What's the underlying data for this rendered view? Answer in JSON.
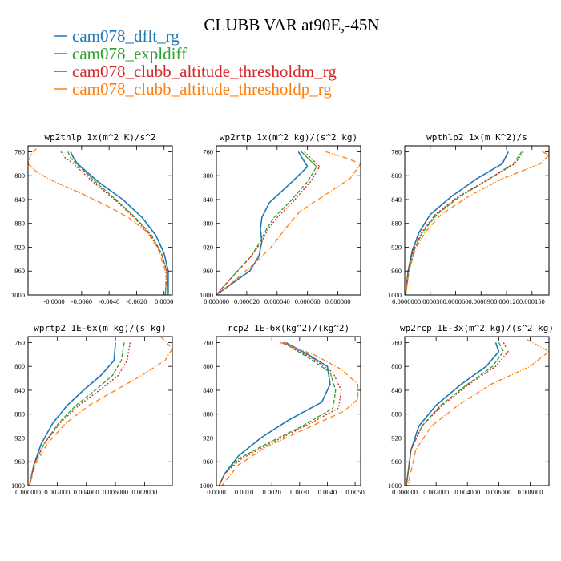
{
  "figure": {
    "title": "CLUBB VAR at90E,-45N"
  },
  "legend": [
    {
      "name": "cam078_dflt_rg",
      "color": "#1f77b4"
    },
    {
      "name": "cam078_expldiff",
      "color": "#2ca02c"
    },
    {
      "name": "cam078_clubb_altitude_thresholdm_rg",
      "color": "#d62728"
    },
    {
      "name": "cam078_clubb_altitude_thresholdp_rg",
      "color": "#ff7f0e"
    }
  ],
  "chart_data": [
    {
      "type": "line",
      "title": "wp2thlp  1x(m^2 K)/s^2",
      "ylim": [
        1000,
        750
      ],
      "xlim": [
        -0.0099,
        0.0006
      ],
      "yticks": [
        760,
        800,
        840,
        880,
        920,
        960,
        1000
      ],
      "xticks": [
        {
          "v": -0.008,
          "label": "-0.0080"
        },
        {
          "v": -0.006,
          "label": "-0.0060"
        },
        {
          "v": -0.004,
          "label": "-0.0040"
        },
        {
          "v": -0.002,
          "label": "-0.0020"
        },
        {
          "v": 0.0,
          "label": "0.0000"
        }
      ],
      "series": [
        {
          "name": "cam078_dflt_rg",
          "x": [
            -0.0068,
            -0.0066,
            -0.0063,
            -0.0048,
            -0.003,
            -0.0016,
            -0.0006,
            0.0,
            0.0003,
            0.0003
          ],
          "y": [
            760,
            770,
            780,
            810,
            840,
            870,
            900,
            930,
            960,
            1000
          ]
        },
        {
          "name": "cam078_expldiff",
          "x": [
            -0.007,
            -0.0068,
            -0.0064,
            -0.005,
            -0.0035,
            -0.0021,
            -0.0009,
            -0.0002,
            0.0002,
            0.0001
          ],
          "y": [
            760,
            770,
            780,
            810,
            840,
            870,
            900,
            930,
            960,
            1000
          ]
        },
        {
          "name": "cam078_clubb_altitude_thresholdm_rg",
          "x": [
            -0.0075,
            -0.0072,
            -0.0066,
            -0.0052,
            -0.0036,
            -0.0022,
            -0.001,
            -0.0002,
            0.0002,
            0.0001
          ],
          "y": [
            760,
            770,
            780,
            810,
            840,
            870,
            900,
            930,
            960,
            1000
          ]
        },
        {
          "name": "cam078_clubb_altitude_thresholdp_rg",
          "x": [
            -0.0093,
            -0.0097,
            -0.0099,
            -0.0092,
            -0.008,
            -0.006,
            -0.0042,
            -0.0026,
            -0.0012,
            -0.0004,
            0.0001,
            0.0003
          ],
          "y": [
            755,
            765,
            780,
            795,
            810,
            830,
            850,
            870,
            895,
            925,
            960,
            1000
          ]
        }
      ]
    },
    {
      "type": "line",
      "title": "wp2rtp  1x(m^2 kg)/(s^2 kg)",
      "ylim": [
        1000,
        750
      ],
      "xlim": [
        0.0,
        9.5e-05
      ],
      "yticks": [
        760,
        800,
        840,
        880,
        920,
        960,
        1000
      ],
      "xticks": [
        {
          "v": 0.0,
          "label": "0.000000"
        },
        {
          "v": 2e-05,
          "label": "0.000020"
        },
        {
          "v": 4e-05,
          "label": "0.000040"
        },
        {
          "v": 6e-05,
          "label": "0.000060"
        },
        {
          "v": 8e-05,
          "label": "0.000080"
        }
      ],
      "series": [
        {
          "name": "cam078_dflt_rg",
          "x": [
            5.4e-05,
            6e-05,
            5e-05,
            3.5e-05,
            3e-05,
            2.9e-05,
            3e-05,
            2.8e-05,
            2.2e-05,
            8e-06,
            0.0
          ],
          "y": [
            760,
            785,
            810,
            845,
            870,
            890,
            910,
            935,
            960,
            985,
            1000
          ]
        },
        {
          "name": "cam078_expldiff",
          "x": [
            5.6e-05,
            6.6e-05,
            6e-05,
            4.8e-05,
            3.8e-05,
            3.3e-05,
            2.9e-05,
            2.3e-05,
            1.4e-05,
            5e-06,
            0.0
          ],
          "y": [
            760,
            785,
            810,
            845,
            870,
            890,
            910,
            935,
            960,
            985,
            1000
          ]
        },
        {
          "name": "cam078_clubb_altitude_thresholdm_rg",
          "x": [
            5.8e-05,
            6.8e-05,
            6.2e-05,
            5e-05,
            4e-05,
            3.4e-05,
            3e-05,
            2.3e-05,
            1.4e-05,
            5e-06,
            0.0
          ],
          "y": [
            760,
            785,
            810,
            845,
            870,
            890,
            910,
            935,
            960,
            985,
            1000
          ]
        },
        {
          "name": "cam078_clubb_altitude_thresholdp_rg",
          "x": [
            7.2e-05,
            8.5e-05,
            9.5e-05,
            8.8e-05,
            7e-05,
            5.5e-05,
            4.5e-05,
            3.6e-05,
            2.4e-05,
            1e-05,
            0.0
          ],
          "y": [
            760,
            770,
            780,
            805,
            835,
            860,
            890,
            920,
            950,
            980,
            1000
          ]
        }
      ]
    },
    {
      "type": "line",
      "title": "wpthlp2  1x(m K^2)/s",
      "ylim": [
        1000,
        750
      ],
      "xlim": [
        0.0,
        0.00017
      ],
      "yticks": [
        760,
        800,
        840,
        880,
        920,
        960,
        1000
      ],
      "xticks": [
        {
          "v": 0.0,
          "label": "0.000000"
        },
        {
          "v": 3e-05,
          "label": "0.000030"
        },
        {
          "v": 6e-05,
          "label": "0.000060"
        },
        {
          "v": 9e-05,
          "label": "0.000090"
        },
        {
          "v": 0.00012,
          "label": "0.000120"
        },
        {
          "v": 0.00015,
          "label": "0.000150"
        }
      ],
      "series": [
        {
          "name": "cam078_dflt_rg",
          "x": [
            0.000122,
            0.000115,
            8.5e-05,
            5.5e-05,
            3e-05,
            1.7e-05,
            9e-06,
            4e-06,
            1e-06
          ],
          "y": [
            760,
            780,
            805,
            835,
            865,
            895,
            925,
            960,
            1000
          ]
        },
        {
          "name": "cam078_expldiff",
          "x": [
            0.000138,
            0.000128,
            0.0001,
            6.5e-05,
            3.8e-05,
            2.1e-05,
            1.1e-05,
            5e-06,
            1e-06
          ],
          "y": [
            760,
            780,
            805,
            835,
            865,
            895,
            925,
            960,
            1000
          ]
        },
        {
          "name": "cam078_clubb_altitude_thresholdm_rg",
          "x": [
            0.00014,
            0.00013,
            0.0001,
            6.3e-05,
            3.6e-05,
            2e-05,
            1e-05,
            4e-06,
            1e-06
          ],
          "y": [
            760,
            780,
            805,
            835,
            865,
            895,
            925,
            960,
            1000
          ]
        },
        {
          "name": "cam078_clubb_altitude_thresholdp_rg",
          "x": [
            0.000162,
            0.00017,
            0.00016,
            0.000115,
            7.5e-05,
            4.3e-05,
            2.4e-05,
            1.2e-05,
            5e-06,
            1e-06
          ],
          "y": [
            760,
            765,
            780,
            805,
            835,
            865,
            895,
            925,
            960,
            1000
          ]
        }
      ]
    },
    {
      "type": "line",
      "title": "wprtp2  1E-6x(m kg)/(s kg)",
      "ylim": [
        1000,
        750
      ],
      "xlim": [
        0.0,
        0.0099
      ],
      "yticks": [
        760,
        800,
        840,
        880,
        920,
        960,
        1000
      ],
      "xticks": [
        {
          "v": 0.0,
          "label": "0.000000"
        },
        {
          "v": 0.002,
          "label": "0.002000"
        },
        {
          "v": 0.004,
          "label": "0.004000"
        },
        {
          "v": 0.006,
          "label": "0.006000"
        },
        {
          "v": 0.008,
          "label": "0.008000"
        }
      ],
      "series": [
        {
          "name": "cam078_dflt_rg",
          "x": [
            0.006,
            0.0059,
            0.005,
            0.0038,
            0.0027,
            0.0017,
            0.0009,
            0.0004,
            0.0001
          ],
          "y": [
            760,
            790,
            815,
            840,
            865,
            895,
            930,
            965,
            1000
          ]
        },
        {
          "name": "cam078_expldiff",
          "x": [
            0.0066,
            0.0064,
            0.0058,
            0.0046,
            0.0033,
            0.0021,
            0.0011,
            0.0004,
            0.0001
          ],
          "y": [
            760,
            790,
            815,
            840,
            865,
            895,
            930,
            965,
            1000
          ]
        },
        {
          "name": "cam078_clubb_altitude_thresholdm_rg",
          "x": [
            0.007,
            0.0068,
            0.0062,
            0.0049,
            0.0035,
            0.0022,
            0.0011,
            0.0004,
            0.0001
          ],
          "y": [
            760,
            790,
            815,
            840,
            865,
            895,
            930,
            965,
            1000
          ]
        },
        {
          "name": "cam078_clubb_altitude_thresholdp_rg",
          "x": [
            0.0091,
            0.0099,
            0.0094,
            0.0078,
            0.006,
            0.0042,
            0.0026,
            0.0013,
            0.0005,
            0.0001
          ],
          "y": [
            750,
            770,
            790,
            815,
            840,
            865,
            895,
            930,
            965,
            1000
          ]
        }
      ]
    },
    {
      "type": "line",
      "title": "rcp2  1E-6x(kg^2)/(kg^2)",
      "ylim": [
        1000,
        750
      ],
      "xlim": [
        0.0,
        0.0052
      ],
      "yticks": [
        760,
        800,
        840,
        880,
        920,
        960,
        1000
      ],
      "xticks": [
        {
          "v": 0.0,
          "label": "0.0000"
        },
        {
          "v": 0.001,
          "label": "0.0010"
        },
        {
          "v": 0.002,
          "label": "0.0020"
        },
        {
          "v": 0.003,
          "label": "0.0030"
        },
        {
          "v": 0.004,
          "label": "0.0040"
        },
        {
          "v": 0.005,
          "label": "0.0050"
        }
      ],
      "series": [
        {
          "name": "cam078_dflt_rg",
          "x": [
            0.0025,
            0.0033,
            0.004,
            0.0041,
            0.0038,
            0.0026,
            0.0016,
            0.0008,
            0.0003,
            0.0001
          ],
          "y": [
            760,
            780,
            800,
            830,
            860,
            890,
            920,
            950,
            980,
            1000
          ]
        },
        {
          "name": "cam078_expldiff",
          "x": [
            0.0024,
            0.0033,
            0.0041,
            0.0043,
            0.0042,
            0.0031,
            0.0018,
            0.0008,
            0.0003,
            0.0001
          ],
          "y": [
            760,
            785,
            810,
            840,
            870,
            900,
            930,
            955,
            980,
            1000
          ]
        },
        {
          "name": "cam078_clubb_altitude_thresholdm_rg",
          "x": [
            0.0024,
            0.0034,
            0.0042,
            0.0045,
            0.0044,
            0.0032,
            0.0019,
            0.0009,
            0.0003,
            0.0001
          ],
          "y": [
            760,
            785,
            810,
            840,
            870,
            900,
            930,
            955,
            980,
            1000
          ]
        },
        {
          "name": "cam078_clubb_altitude_thresholdp_rg",
          "x": [
            0.0023,
            0.0035,
            0.0045,
            0.0051,
            0.0051,
            0.0046,
            0.0032,
            0.0018,
            0.0008,
            0.0002
          ],
          "y": [
            760,
            780,
            805,
            830,
            855,
            875,
            905,
            935,
            965,
            1000
          ]
        }
      ]
    },
    {
      "type": "line",
      "title": "wp2rcp  1E-3x(m^2 kg)/(s^2 kg)",
      "ylim": [
        1000,
        750
      ],
      "xlim": [
        0.0,
        0.0092
      ],
      "yticks": [
        760,
        800,
        840,
        880,
        920,
        960,
        1000
      ],
      "xticks": [
        {
          "v": 0.0,
          "label": "0.000000"
        },
        {
          "v": 0.002,
          "label": "0.002000"
        },
        {
          "v": 0.004,
          "label": "0.004000"
        },
        {
          "v": 0.006,
          "label": "0.006000"
        },
        {
          "v": 0.008,
          "label": "0.008000"
        }
      ],
      "series": [
        {
          "name": "cam078_dflt_rg",
          "x": [
            0.0058,
            0.006,
            0.0052,
            0.0036,
            0.002,
            0.0009,
            0.0004,
            0.0001
          ],
          "y": [
            760,
            775,
            800,
            830,
            865,
            900,
            940,
            1000
          ]
        },
        {
          "name": "cam078_expldiff",
          "x": [
            0.006,
            0.0063,
            0.0056,
            0.004,
            0.0023,
            0.0011,
            0.0004,
            0.0001
          ],
          "y": [
            760,
            775,
            800,
            830,
            865,
            900,
            940,
            1000
          ]
        },
        {
          "name": "cam078_clubb_altitude_thresholdm_rg",
          "x": [
            0.0063,
            0.0066,
            0.0058,
            0.0041,
            0.0024,
            0.0011,
            0.0004,
            0.0001
          ],
          "y": [
            760,
            775,
            800,
            830,
            865,
            900,
            940,
            1000
          ]
        },
        {
          "name": "cam078_clubb_altitude_thresholdp_rg",
          "x": [
            0.0078,
            0.0092,
            0.008,
            0.0055,
            0.0034,
            0.0017,
            0.0007,
            0.0002
          ],
          "y": [
            755,
            775,
            800,
            830,
            865,
            900,
            940,
            1000
          ]
        }
      ]
    }
  ]
}
